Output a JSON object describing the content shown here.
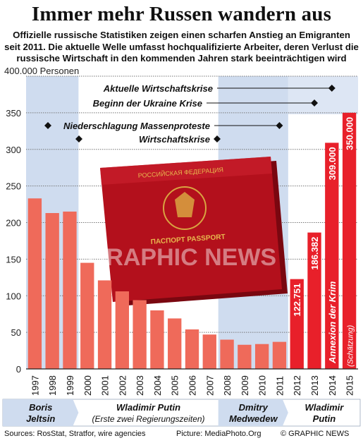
{
  "title": "Immer mehr Russen wandern aus",
  "subtitle": "Offizielle russische Statistiken zeigen einen scharfen Anstieg an Emigranten seit 2011. Die aktuelle Welle umfasst hochqualifizierte Arbeiter, deren Verlust die russische Wirtschaft in den kommenden Jahren stark beeinträchtigen wird",
  "chart_data": {
    "type": "bar",
    "y_unit_label": "400.000 Personen",
    "y_ticks": [
      "0",
      "50",
      "100",
      "150",
      "200",
      "250",
      "300",
      "350"
    ],
    "ylim": [
      0,
      400000
    ],
    "categories": [
      "1997",
      "1998",
      "1999",
      "2000",
      "2001",
      "2002",
      "2003",
      "2004",
      "2005",
      "2006",
      "2007",
      "2008",
      "2009",
      "2010",
      "2011",
      "2012",
      "2013",
      "2014",
      "2015"
    ],
    "values": [
      233000,
      213000,
      215000,
      145000,
      121000,
      106000,
      94000,
      80000,
      69000,
      54000,
      47000,
      40000,
      33000,
      34000,
      37000,
      122751,
      186382,
      309000,
      350000
    ],
    "bar_labels": [
      "",
      "",
      "",
      "",
      "",
      "",
      "",
      "",
      "",
      "",
      "",
      "",
      "",
      "",
      "",
      "122.751",
      "186.382",
      "309.000",
      "350.000"
    ],
    "annotations": [
      {
        "text": "Annexion der Krim",
        "category": "2014"
      },
      {
        "text": "(Schätzung)",
        "category": "2015"
      }
    ],
    "events": [
      {
        "label": "Aktuelle Wirtschaftskrise",
        "category": "2014"
      },
      {
        "label": "Beginn der Ukraine Krise",
        "category": "2013"
      },
      {
        "label": "Niederschlagung Massenproteste",
        "category": "2011"
      },
      {
        "label": "Wirtschaftskrise",
        "category": "2008"
      }
    ],
    "eras": [
      {
        "line1": "Boris",
        "line2": "Jeltsin",
        "from": "1997",
        "to": "1999",
        "shaded": true
      },
      {
        "line1": "Wladimir Putin",
        "line2": "(Erste zwei Regierungszeiten)",
        "from": "2000",
        "to": "2007",
        "shaded": false
      },
      {
        "line1": "Dmitry",
        "line2": "Medwedew",
        "from": "2008",
        "to": "2011",
        "shaded": true
      },
      {
        "line1": "Wladimir",
        "line2": "Putin",
        "from": "2012",
        "to": "2015",
        "shaded": false
      }
    ],
    "colors": {
      "bar_normal": "#ef6a5a",
      "bar_recent": "#e8202a",
      "era_band": "#cfdcef",
      "bar_label_text": "#ffffff",
      "passport": "#b3101c"
    },
    "grid": true
  },
  "image": {
    "label_top": "РОССИЙСКАЯ ФЕДЕРАЦИЯ",
    "label_bottom": "ПАСПОРТ PASSPORT"
  },
  "watermark": "GRAPHIC NEWS",
  "footer": {
    "sources": "Sources: RosStat, Stratfor, wire agencies",
    "picture": "Picture: MediaPhoto.Org",
    "copyright": "© GRAPHIC NEWS"
  }
}
